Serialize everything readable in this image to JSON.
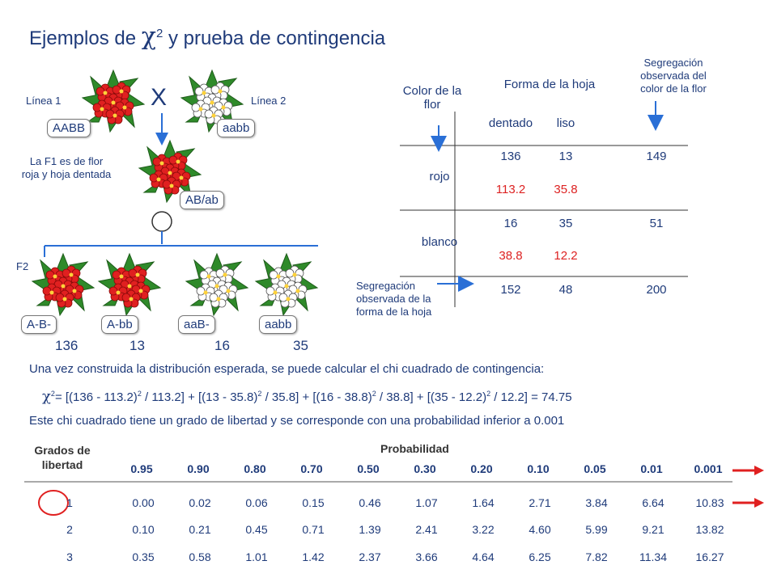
{
  "title": {
    "prefix": "Ejemplos de ",
    "chi": "χ",
    "exp": "2",
    "suffix": " y prueba de contingencia"
  },
  "cross": {
    "linea1": "Línea 1",
    "linea2": "Línea 2",
    "parent1": "AABB",
    "parent2": "aabb",
    "cross_symbol": "X",
    "f1_note": "La F1 es de flor roja y hoja dentada",
    "f1_genotype": "AB/ab",
    "f2_label": "F2",
    "f2": [
      {
        "genotype": "A-B-",
        "count": "136"
      },
      {
        "genotype": "A-bb",
        "count": "13"
      },
      {
        "genotype": "aaB-",
        "count": "16"
      },
      {
        "genotype": "aabb",
        "count": "35"
      }
    ]
  },
  "contingency": {
    "row_header": "Color de la flor",
    "col_header": "Forma de la hoja",
    "margin_right_note": "Segregación observada del color de la flor",
    "margin_bottom_note": "Segregación observada de la forma de la hoja",
    "cols": [
      "dentado",
      "liso"
    ],
    "rows": [
      {
        "label": "rojo",
        "observed": [
          "136",
          "13"
        ],
        "expected": [
          "113.2",
          "35.8"
        ],
        "total": "149"
      },
      {
        "label": "blanco",
        "observed": [
          "16",
          "35"
        ],
        "expected": [
          "38.8",
          "12.2"
        ],
        "total": "51"
      }
    ],
    "col_totals": [
      "152",
      "48"
    ],
    "grand_total": "200"
  },
  "text": {
    "intro": "Una vez construida la distribución esperada, se puede calcular el chi cuadrado de contingencia:",
    "formula_parts": [
      "= [(136 - 113.2)",
      "2",
      " / 113.2] + [(13 - 35.8)",
      "2",
      " / 35.8] + [(16 - 38.8)",
      "2",
      " / 38.8] + [(35 - 12.2)",
      "2",
      " / 12.2] = 74.75"
    ],
    "conclusion": "Este chi cuadrado tiene un grado de libertad y se corresponde con una probabilidad inferior a 0.001"
  },
  "dist_table": {
    "df_header": "Grados de libertad",
    "prob_header": "Probabilidad",
    "probs": [
      "0.95",
      "0.90",
      "0.80",
      "0.70",
      "0.50",
      "0.30",
      "0.20",
      "0.10",
      "0.05",
      "0.01",
      "0.001"
    ],
    "rows": [
      {
        "df": "1",
        "values": [
          "0.00",
          "0.02",
          "0.06",
          "0.15",
          "0.46",
          "1.07",
          "1.64",
          "2.71",
          "3.84",
          "6.64",
          "10.83"
        ]
      },
      {
        "df": "2",
        "values": [
          "0.10",
          "0.21",
          "0.45",
          "0.71",
          "1.39",
          "2.41",
          "3.22",
          "4.60",
          "5.99",
          "9.21",
          "13.82"
        ]
      },
      {
        "df": "3",
        "values": [
          "0.35",
          "0.58",
          "1.01",
          "1.42",
          "2.37",
          "3.66",
          "4.64",
          "6.25",
          "7.82",
          "11.34",
          "16.27"
        ]
      }
    ]
  },
  "colors": {
    "blue": "#1f3b7a",
    "red": "#d22",
    "arrow_blue": "#2a6fd6",
    "leaf": "#2f8a2a",
    "red_flower": "#e02020",
    "white_flower": "#ffffff"
  }
}
